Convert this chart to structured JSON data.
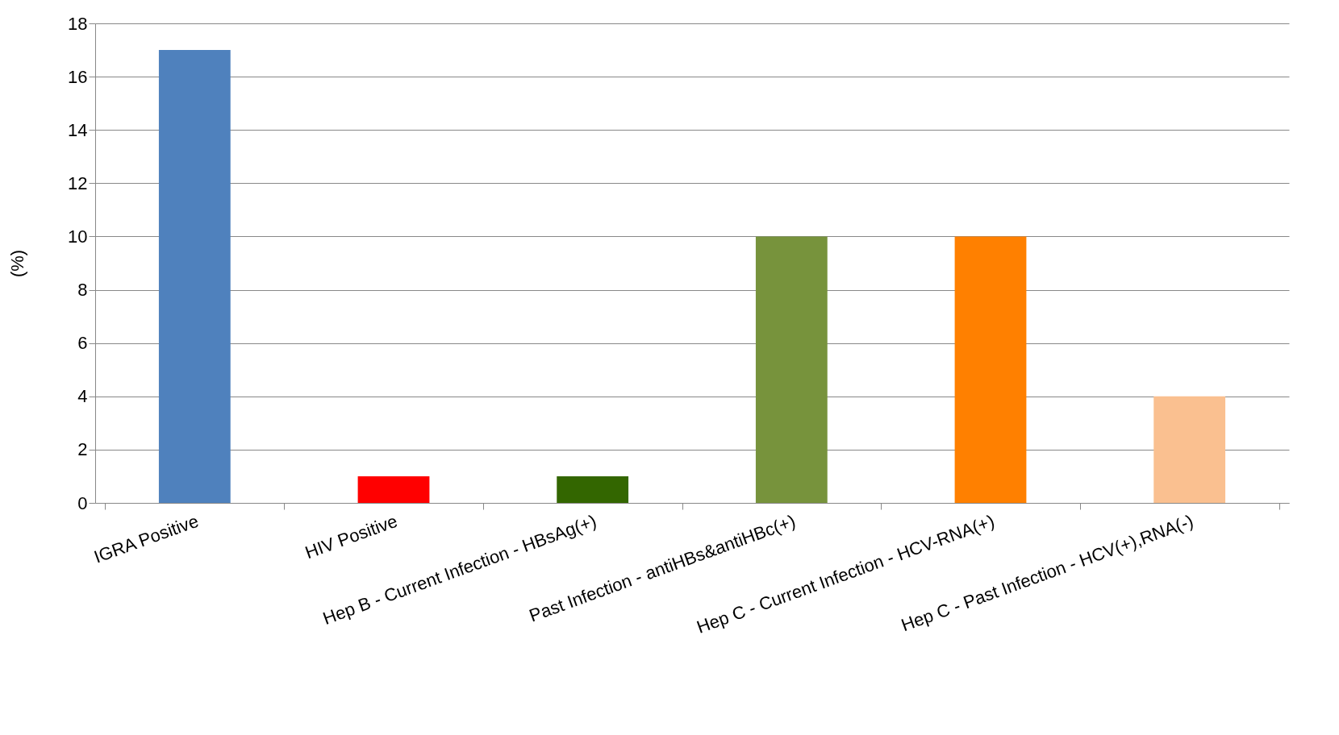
{
  "chart_data": {
    "type": "bar",
    "ylabel": "(%)",
    "categories": [
      "IGRA Positive",
      "HIV Positive",
      "Hep B - Current Infection - HBsAg(+)",
      "Past Infection - antiHBs&antiHBc(+)",
      "Hep C - Current Infection - HCV-RNA(+)",
      "Hep C - Past Infection - HCV(+),RNA(-)"
    ],
    "values": [
      17,
      1,
      1,
      10,
      10,
      4
    ],
    "colors": [
      "#4f81bd",
      "#ff0000",
      "#336600",
      "#77933c",
      "#ff8000",
      "#fac090"
    ],
    "ylim": [
      0,
      18
    ],
    "yticks": [
      0,
      2,
      4,
      6,
      8,
      10,
      12,
      14,
      16,
      18
    ],
    "grid": "y"
  }
}
